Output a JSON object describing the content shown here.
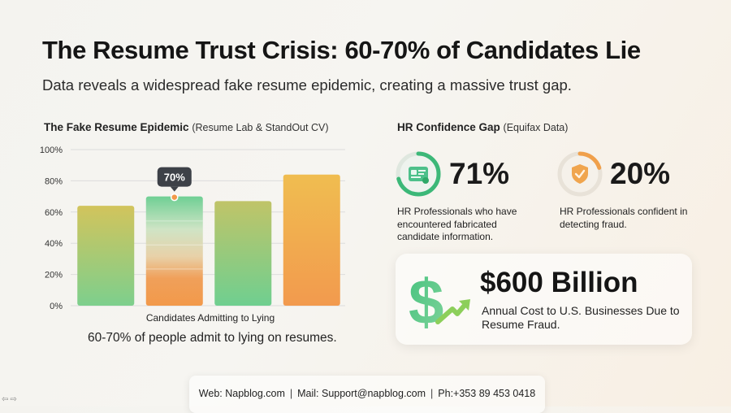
{
  "header": {
    "title": "The Resume Trust Crisis: 60-70% of Candidates Lie",
    "subtitle": "Data reveals a widespread fake resume epidemic, creating a massive trust gap."
  },
  "chart_section": {
    "title": "The Fake Resume Epidemic",
    "source": "(Resume Lab & StandOut CV)",
    "caption": "60-70% of people admit to lying on resumes."
  },
  "chart_data": {
    "type": "bar",
    "title": "The Fake Resume Epidemic",
    "xlabel": "Candidates Admitting to Lying",
    "ylabel": "",
    "ylim": [
      0,
      100
    ],
    "yticks": [
      "0%",
      "20%",
      "40%",
      "60%",
      "80%",
      "100%"
    ],
    "values": [
      64,
      70,
      67,
      84
    ],
    "annotation": {
      "bar_index": 1,
      "label": "70%"
    },
    "grid": true,
    "colors": {
      "bar1": [
        "#9ccb6e",
        "#d8c45e"
      ],
      "bar2": [
        "#6fcf94",
        "#f2994a"
      ],
      "bar3": [
        "#7fd08a",
        "#c6c46a"
      ],
      "bar4": [
        "#f0b84e",
        "#f29c4c"
      ]
    }
  },
  "hr_section": {
    "title": "HR Confidence Gap",
    "source": "(Equifax Data)",
    "stats": [
      {
        "value": "71%",
        "percent": 71,
        "icon": "id-card-icon",
        "color": "#3cb878",
        "description": "HR Professionals who have encountered fabricated candidate information."
      },
      {
        "value": "20%",
        "percent": 20,
        "icon": "shield-icon",
        "color": "#f0a04b",
        "description": "HR Professionals confident in detecting fraud."
      }
    ]
  },
  "cost": {
    "value": "$600 Billion",
    "description": "Annual Cost to U.S. Businesses Due to Resume Fraud.",
    "icon": "dollar-growth-icon"
  },
  "footer": {
    "web": "Web: Napblog.com",
    "mail": "Mail: Support@napblog.com",
    "phone": "Ph:+353 89 453 0418",
    "separator": "|"
  },
  "nav": {
    "arrows": "⇦⇨"
  }
}
